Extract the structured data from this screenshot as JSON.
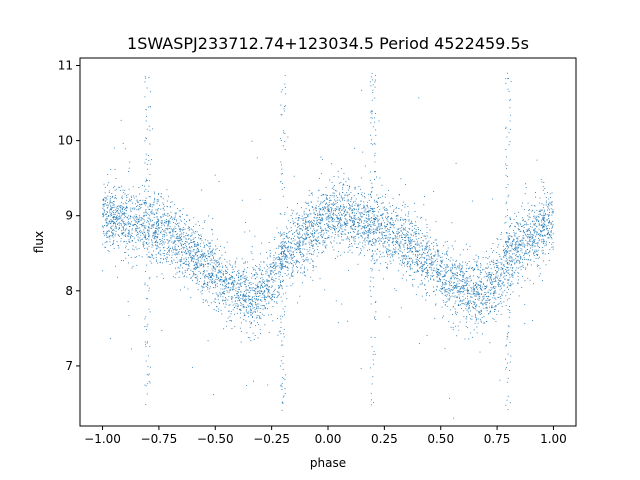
{
  "chart_data": {
    "type": "scatter",
    "title": "1SWASPJ233712.74+123034.5 Period 4522459.5s",
    "xlabel": "phase",
    "ylabel": "flux",
    "xlim": [
      -1.1,
      1.1
    ],
    "ylim": [
      6.2,
      11.1
    ],
    "xticks": [
      -1.0,
      -0.75,
      -0.5,
      -0.25,
      0.0,
      0.25,
      0.5,
      0.75,
      1.0
    ],
    "xtick_labels": [
      "−1.00",
      "−0.75",
      "−0.50",
      "−0.25",
      "0.00",
      "0.25",
      "0.50",
      "0.75",
      "1.00"
    ],
    "yticks": [
      7,
      8,
      9,
      10,
      11
    ],
    "ytick_labels": [
      "7",
      "8",
      "9",
      "10",
      "11"
    ],
    "grid": false,
    "marker_color": "#1f77b4",
    "series": [
      {
        "description_hidden": true,
        "trend": {
          "x": [
            -1.0,
            -0.95,
            -0.9,
            -0.85,
            -0.8,
            -0.75,
            -0.7,
            -0.65,
            -0.6,
            -0.55,
            -0.5,
            -0.45,
            -0.4,
            -0.35,
            -0.3,
            -0.25,
            -0.2,
            -0.15,
            -0.1,
            -0.05,
            0.0,
            0.05,
            0.1,
            0.15,
            0.2,
            0.25,
            0.3,
            0.35,
            0.4,
            0.45,
            0.5,
            0.55,
            0.6,
            0.65,
            0.7,
            0.75,
            0.8,
            0.85,
            0.9,
            0.95,
            1.0
          ],
          "y": [
            8.95,
            9.0,
            8.95,
            8.9,
            8.85,
            8.85,
            8.75,
            8.65,
            8.5,
            8.35,
            8.2,
            8.05,
            8.0,
            7.95,
            7.95,
            8.1,
            8.45,
            8.6,
            8.75,
            8.85,
            8.95,
            9.0,
            8.95,
            8.9,
            8.85,
            8.85,
            8.75,
            8.65,
            8.5,
            8.35,
            8.2,
            8.05,
            8.0,
            7.95,
            7.95,
            8.1,
            8.45,
            8.6,
            8.75,
            8.85,
            8.95
          ]
        },
        "scatter_sigma": 0.22,
        "n_points": 6000,
        "outlier_fraction": 0.04,
        "spike_phases": [
          -0.8,
          -0.2,
          0.2,
          0.8
        ],
        "spike_range": [
          6.4,
          10.9
        ]
      }
    ]
  }
}
